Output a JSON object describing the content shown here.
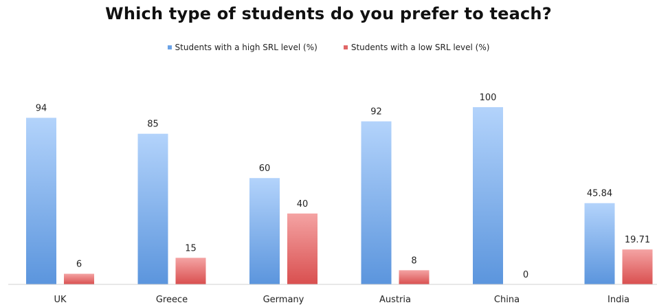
{
  "chart_data": {
    "type": "bar",
    "title": "Which type of students do you prefer to teach?",
    "categories": [
      "UK",
      "Greece",
      "Germany",
      "Austria",
      "China",
      "India"
    ],
    "series": [
      {
        "name": "Students with a high SRL level (%)",
        "values": [
          94,
          85,
          60,
          92,
          100,
          45.84
        ],
        "labels": [
          "94",
          "85",
          "60",
          "92",
          "100",
          "45.84"
        ],
        "color": "#6aa2e6"
      },
      {
        "name": "Students with a low SRL level (%)",
        "values": [
          6,
          15,
          40,
          8,
          0,
          19.71
        ],
        "labels": [
          "6",
          "15",
          "40",
          "8",
          "0",
          "19.71"
        ],
        "color": "#e06666"
      }
    ],
    "ylim": [
      0,
      100
    ],
    "grid": false,
    "legend_position": "top"
  }
}
